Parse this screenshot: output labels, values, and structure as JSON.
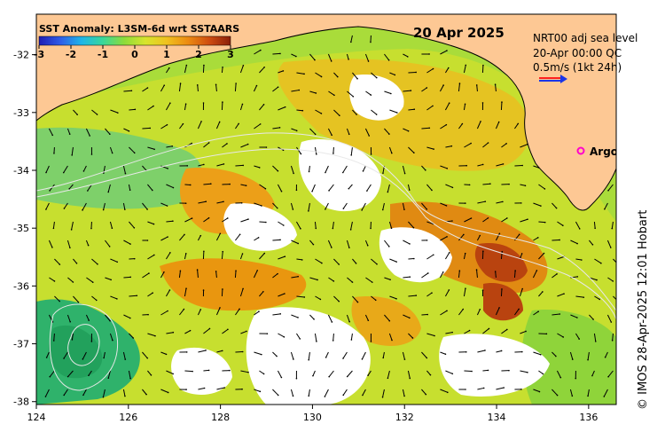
{
  "colorbar": {
    "title": "SST Anomaly: L3SM-6d wrt SSTAARS",
    "ticks": [
      "-3",
      "-2",
      "-1",
      "0",
      "1",
      "2",
      "3"
    ],
    "stops": [
      "#1f1cb3",
      "#2f5ce8",
      "#1fb6e8",
      "#39d89a",
      "#8ddc3a",
      "#d7e52c",
      "#f0c21e",
      "#ec8b12",
      "#cf4d10",
      "#8a1f0a"
    ]
  },
  "date": "20 Apr 2025",
  "legend": {
    "line1": "NRT00 adj sea level",
    "line2": "20-Apr 00:00 QC",
    "line3": "0.5m/s (1kt 24h)",
    "argo": "Argo",
    "arrow_colors": [
      "#ff2020",
      "#1a36e8"
    ]
  },
  "axes": {
    "x_ticks": [
      "124",
      "126",
      "128",
      "130",
      "132",
      "134",
      "136"
    ],
    "y_ticks": [
      "-32",
      "-33",
      "-34",
      "-35",
      "-36",
      "-37",
      "-38"
    ]
  },
  "credit": "© IMOS 28-Apr-2025 12:01 Hobart",
  "colors": {
    "land": "#fdc894",
    "no_data": "#ffffff"
  }
}
